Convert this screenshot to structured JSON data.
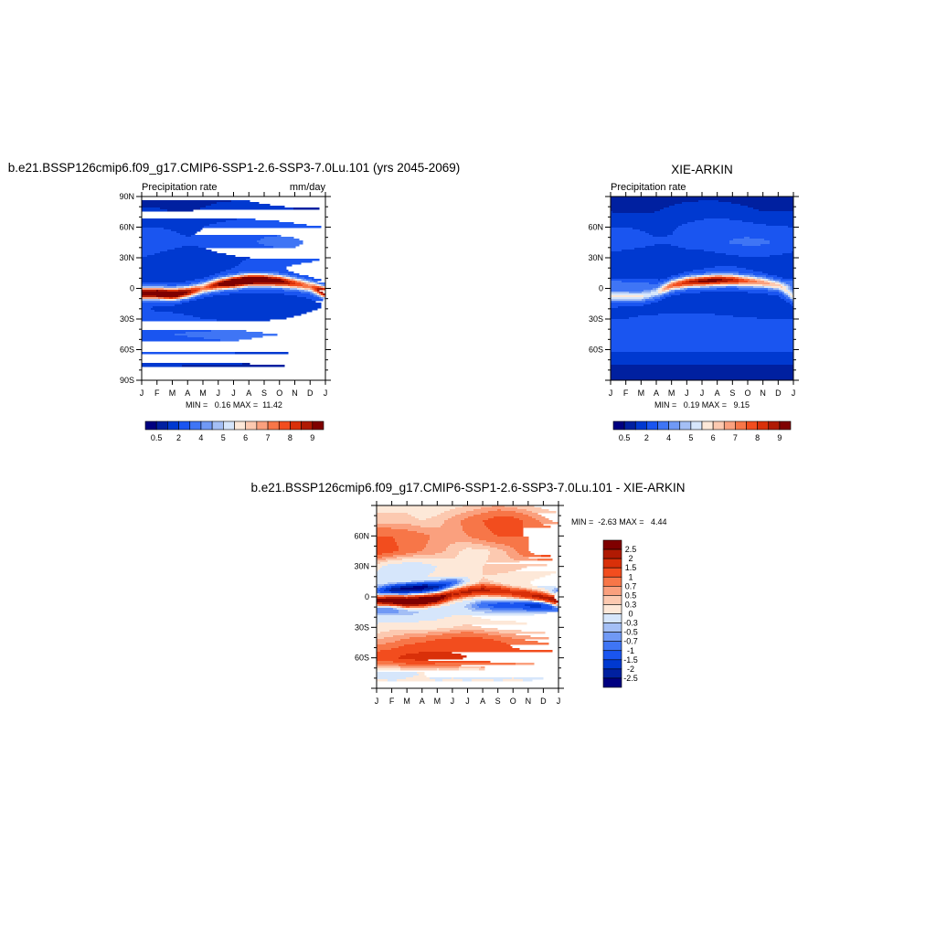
{
  "palette": [
    "#000080",
    "#0020a0",
    "#0039d0",
    "#1a55f0",
    "#3f75f5",
    "#7099f5",
    "#a4bff5",
    "#d6e6fb",
    "#fde8d8",
    "#fcc9b0",
    "#faa07e",
    "#f77648",
    "#f24d1e",
    "#d93009",
    "#b01a03",
    "#7f0000"
  ],
  "chart_data": [
    {
      "type": "heatmap",
      "title": "b.e21.BSSP126cmip6.f09_g17.CMIP6-SSP1-2.6-SSP3-7.0Lu.101 (yrs 2045-2069)",
      "left_string": "Precipitation rate",
      "right_string": "mm/day",
      "xticklabels": [
        "J",
        "F",
        "M",
        "A",
        "M",
        "J",
        "J",
        "A",
        "S",
        "O",
        "N",
        "D",
        "J"
      ],
      "yticklabels": [
        "90N",
        "60N",
        "30N",
        "0",
        "30S",
        "60S",
        "90S"
      ],
      "ytickvalues": [
        90,
        60,
        30,
        0,
        -30,
        -60,
        -90
      ],
      "stats": "MIN =   0.16 MAX =  11.42",
      "min": 0.16,
      "max": 11.42,
      "levels": [
        0.5,
        1,
        2,
        3,
        4,
        4.5,
        5,
        5.5,
        6,
        6.5,
        7,
        7.5,
        8,
        8.5,
        9
      ],
      "colorbar_labels": [
        "0.5",
        "2",
        "4",
        "5",
        "6",
        "7",
        "8",
        "9"
      ],
      "lat": [
        90,
        75,
        60,
        45,
        30,
        15,
        0,
        -15,
        -30,
        -45,
        -60,
        -75,
        -90
      ],
      "background": [
        [
          0.7,
          0.7,
          0.7,
          0.7,
          0.7,
          0.8,
          0.8,
          0.8,
          0.7,
          0.7,
          0.6,
          0.6,
          0.7
        ],
        [
          1.1,
          1.1,
          1.0,
          1.0,
          1.1,
          1.3,
          1.5,
          1.5,
          1.3,
          1.2,
          1.1,
          1.1,
          1.1
        ],
        [
          2.0,
          2.0,
          1.9,
          1.8,
          2.0,
          2.3,
          2.5,
          2.6,
          2.6,
          2.5,
          2.3,
          2.1,
          2.0
        ],
        [
          2.5,
          2.5,
          2.3,
          2.1,
          2.2,
          2.4,
          2.6,
          2.8,
          3.2,
          3.4,
          3.3,
          2.8,
          2.5
        ],
        [
          2.0,
          1.8,
          1.6,
          1.5,
          1.6,
          1.8,
          1.9,
          2.0,
          2.1,
          2.2,
          2.3,
          2.2,
          2.0
        ],
        [
          1.2,
          1.0,
          1.0,
          1.2,
          1.5,
          1.8,
          2.0,
          2.2,
          2.2,
          2.0,
          1.6,
          1.4,
          1.2
        ],
        [
          2.2,
          2.2,
          2.2,
          2.2,
          2.2,
          2.2,
          2.2,
          2.2,
          2.2,
          2.2,
          2.2,
          2.2,
          2.2
        ],
        [
          2.0,
          1.8,
          1.6,
          1.4,
          1.2,
          1.1,
          1.0,
          1.0,
          1.1,
          1.3,
          1.6,
          1.8,
          2.0
        ],
        [
          2.2,
          2.2,
          2.3,
          2.2,
          2.0,
          1.9,
          1.8,
          1.8,
          1.9,
          2.0,
          2.1,
          2.2,
          2.2
        ],
        [
          3.0,
          3.0,
          3.0,
          3.1,
          3.2,
          3.4,
          3.5,
          3.3,
          3.1,
          3.0,
          2.9,
          2.9,
          3.0
        ],
        [
          2.3,
          2.3,
          2.4,
          2.4,
          2.4,
          2.3,
          2.3,
          2.2,
          2.2,
          2.2,
          2.3,
          2.3,
          2.3
        ],
        [
          1.1,
          1.1,
          1.1,
          1.0,
          0.9,
          0.9,
          0.9,
          0.9,
          1.0,
          1.0,
          1.1,
          1.1,
          1.1
        ],
        [
          0.3,
          0.3,
          0.3,
          0.3,
          0.3,
          0.3,
          0.3,
          0.3,
          0.3,
          0.3,
          0.3,
          0.3,
          0.3
        ]
      ],
      "bands": [
        {
          "lat": [
            -5,
            -5,
            -6,
            -4,
            0,
            4,
            6,
            8,
            8,
            7,
            5,
            2,
            -4
          ],
          "amp": [
            8,
            8.5,
            9,
            7,
            5,
            7,
            9,
            9,
            8.5,
            7.5,
            6,
            5,
            8
          ],
          "width": 6
        }
      ]
    },
    {
      "type": "heatmap",
      "title": "XIE-ARKIN",
      "left_string": "Precipitation rate",
      "right_string": "",
      "xticklabels": [
        "J",
        "F",
        "M",
        "A",
        "M",
        "J",
        "J",
        "A",
        "S",
        "O",
        "N",
        "D",
        "J"
      ],
      "yticklabels": [
        "60N",
        "30N",
        "0",
        "30S",
        "60S"
      ],
      "ytickvalues": [
        60,
        30,
        0,
        -30,
        -60
      ],
      "stats": "MIN =   0.19 MAX =   9.15",
      "min": 0.19,
      "max": 9.15,
      "levels": [
        0.5,
        1,
        2,
        3,
        4,
        4.5,
        5,
        5.5,
        6,
        6.5,
        7,
        7.5,
        8,
        8.5,
        9
      ],
      "colorbar_labels": [
        "0.5",
        "2",
        "4",
        "5",
        "6",
        "7",
        "8",
        "9"
      ],
      "lat": [
        90,
        75,
        60,
        45,
        30,
        15,
        0,
        -15,
        -30,
        -45,
        -60,
        -75,
        -90
      ],
      "background": [
        [
          0.6,
          0.5,
          0.5,
          0.6,
          0.7,
          0.8,
          0.8,
          0.8,
          0.7,
          0.6,
          0.5,
          0.5,
          0.6
        ],
        [
          1.0,
          0.9,
          0.9,
          1.0,
          1.2,
          1.4,
          1.5,
          1.5,
          1.4,
          1.2,
          1.0,
          1.0,
          1.0
        ],
        [
          2.0,
          2.0,
          1.9,
          1.8,
          1.9,
          2.2,
          2.5,
          2.6,
          2.6,
          2.4,
          2.2,
          2.1,
          2.0
        ],
        [
          2.6,
          2.5,
          2.3,
          2.1,
          2.1,
          2.3,
          2.5,
          2.8,
          3.1,
          3.3,
          3.2,
          2.9,
          2.6
        ],
        [
          1.6,
          1.5,
          1.4,
          1.4,
          1.5,
          1.6,
          1.5,
          1.6,
          1.8,
          1.9,
          1.9,
          1.8,
          1.6
        ],
        [
          1.2,
          1.1,
          1.1,
          1.2,
          1.4,
          1.7,
          2.0,
          2.2,
          2.1,
          1.9,
          1.6,
          1.4,
          1.2
        ],
        [
          2.0,
          2.0,
          2.0,
          2.0,
          2.0,
          2.0,
          2.0,
          2.0,
          2.0,
          2.0,
          2.0,
          2.0,
          2.0
        ],
        [
          1.8,
          1.7,
          1.6,
          1.5,
          1.3,
          1.1,
          1.0,
          1.0,
          1.1,
          1.3,
          1.5,
          1.7,
          1.8
        ],
        [
          2.0,
          2.0,
          2.1,
          2.2,
          2.4,
          2.6,
          2.6,
          2.4,
          2.2,
          2.1,
          2.0,
          2.0,
          2.0
        ],
        [
          2.8,
          2.8,
          2.8,
          2.8,
          2.9,
          3.0,
          3.0,
          2.9,
          2.8,
          2.8,
          2.7,
          2.7,
          2.8
        ],
        [
          2.2,
          2.2,
          2.2,
          2.2,
          2.2,
          2.2,
          2.2,
          2.2,
          2.2,
          2.2,
          2.2,
          2.2,
          2.2
        ],
        [
          1.0,
          1.0,
          1.0,
          1.0,
          1.0,
          1.0,
          1.0,
          1.0,
          1.0,
          1.0,
          1.0,
          1.0,
          1.0
        ],
        [
          0.5,
          0.5,
          0.5,
          0.5,
          0.5,
          0.5,
          0.5,
          0.5,
          0.5,
          0.5,
          0.5,
          0.5,
          0.5
        ]
      ],
      "bands": [
        {
          "lat": [
            -8,
            -8,
            -8,
            -5,
            3,
            6,
            7,
            8,
            8,
            7,
            6,
            3,
            -8
          ],
          "amp": [
            3.8,
            3.8,
            3.8,
            3.2,
            5.5,
            6.5,
            7.2,
            7.2,
            6.5,
            5.5,
            4.5,
            3.0,
            3.8
          ],
          "width": 6
        },
        {
          "lat": [
            4,
            4,
            4,
            4,
            4,
            4,
            4,
            4,
            4,
            4,
            4,
            4,
            4
          ],
          "amp": [
            2.0,
            1.8,
            1.5,
            1.0,
            0,
            0,
            0,
            0,
            0,
            0,
            0.5,
            1.2,
            2.0
          ],
          "width": 5
        }
      ]
    },
    {
      "type": "heatmap",
      "title": "b.e21.BSSP126cmip6.f09_g17.CMIP6-SSP1-2.6-SSP3-7.0Lu.101 - XIE-ARKIN",
      "left_string": "",
      "right_string": "",
      "xticklabels": [
        "J",
        "F",
        "M",
        "A",
        "M",
        "J",
        "J",
        "A",
        "S",
        "O",
        "N",
        "D",
        "J"
      ],
      "yticklabels": [
        "60N",
        "30N",
        "0",
        "30S",
        "60S"
      ],
      "ytickvalues": [
        60,
        30,
        0,
        -30,
        -60
      ],
      "stats": "MIN =  -2.63 MAX =   4.44",
      "min": -2.63,
      "max": 4.44,
      "levels": [
        -2.5,
        -2,
        -1.5,
        -1,
        -0.7,
        -0.5,
        -0.3,
        0,
        0.3,
        0.5,
        0.7,
        1,
        1.5,
        2,
        2.5
      ],
      "colorbar_labels": [
        "-2.5",
        "-2",
        "-1.5",
        "-1",
        "-0.7",
        "-0.5",
        "-0.3",
        "0",
        "0.3",
        "0.5",
        "0.7",
        "1",
        "1.5",
        "2",
        "2.5"
      ],
      "lat": [
        90,
        75,
        60,
        45,
        30,
        15,
        0,
        -15,
        -30,
        -45,
        -60,
        -75,
        -90
      ],
      "background": [
        [
          0.2,
          0.2,
          0.2,
          0.1,
          0.1,
          0.2,
          0.3,
          0.4,
          0.5,
          0.4,
          0.3,
          0.2,
          0.2
        ],
        [
          0.4,
          0.4,
          0.4,
          0.3,
          0.4,
          0.6,
          0.8,
          1.0,
          1.2,
          1.2,
          0.9,
          0.6,
          0.4
        ],
        [
          1.0,
          1.0,
          0.9,
          0.8,
          0.6,
          0.6,
          0.7,
          0.9,
          1.0,
          1.0,
          1.0,
          1.0,
          1.0
        ],
        [
          1.3,
          1.1,
          0.9,
          0.7,
          0.6,
          0.4,
          0.2,
          0.2,
          0.4,
          0.6,
          1.0,
          1.4,
          1.3
        ],
        [
          0.1,
          -0.2,
          -0.3,
          -0.2,
          0.0,
          0.2,
          0.3,
          0.3,
          0.4,
          0.4,
          0.3,
          0.2,
          0.1
        ],
        [
          -0.2,
          0,
          0.1,
          0.1,
          0.1,
          0.2,
          0.3,
          0.3,
          0.2,
          0.1,
          0,
          -0.1,
          -0.2
        ],
        [
          0,
          0,
          0,
          0,
          0,
          0,
          0,
          0,
          0,
          0,
          0,
          0,
          0
        ],
        [
          -0.3,
          -0.4,
          -0.4,
          -0.3,
          -0.2,
          -0.1,
          -0.1,
          -0.2,
          -0.3,
          -0.3,
          -0.3,
          -0.3,
          -0.3
        ],
        [
          0.1,
          0.2,
          0.2,
          0.2,
          0.2,
          0.3,
          0.4,
          0.3,
          0.2,
          0.2,
          0.1,
          0.1,
          0.1
        ],
        [
          0.6,
          0.7,
          0.9,
          1.0,
          1.2,
          1.3,
          1.4,
          1.3,
          1.1,
          0.9,
          0.8,
          0.7,
          0.6
        ],
        [
          1.3,
          1.4,
          1.7,
          1.8,
          1.7,
          1.6,
          1.5,
          1.5,
          1.3,
          1.2,
          1.2,
          1.3,
          1.3
        ],
        [
          -0.1,
          -0.2,
          -0.1,
          0,
          -0.2,
          -0.1,
          -0.2,
          -0.1,
          -0.2,
          -0.1,
          -0.2,
          -0.1,
          -0.1
        ],
        [
          0.2,
          0.2,
          0.2,
          0.2,
          0.2,
          0.2,
          0.2,
          0.2,
          0.2,
          0.2,
          0.2,
          0.2,
          0.2
        ]
      ],
      "bands": [
        {
          "lat": [
            -4,
            -4,
            -5,
            -4,
            -2,
            2,
            5,
            7,
            6,
            4,
            2,
            -1,
            -4
          ],
          "amp": [
            3.0,
            3.5,
            4.2,
            4.0,
            3.2,
            2.0,
            2.0,
            2.0,
            1.8,
            1.6,
            2.0,
            2.4,
            3.0
          ],
          "width": 5
        },
        {
          "lat": [
            5,
            7,
            8,
            9,
            10,
            14,
            16,
            15,
            10,
            5,
            0,
            0,
            5
          ],
          "amp": [
            -0.8,
            -2.2,
            -2.8,
            -2.8,
            -2.2,
            -1.2,
            -0.4,
            0,
            0,
            0,
            0,
            0,
            -0.8
          ],
          "width": 5
        },
        {
          "lat": [
            -10,
            -10,
            -10,
            -10,
            -10,
            -10,
            -9,
            -8,
            -8,
            -8,
            -8,
            -8,
            -10
          ],
          "amp": [
            -0.8,
            -0.6,
            -0.3,
            0,
            0,
            0,
            -0.3,
            -0.8,
            -1.0,
            -1.0,
            -1.5,
            -1.6,
            -0.8
          ],
          "width": 5
        }
      ]
    }
  ]
}
